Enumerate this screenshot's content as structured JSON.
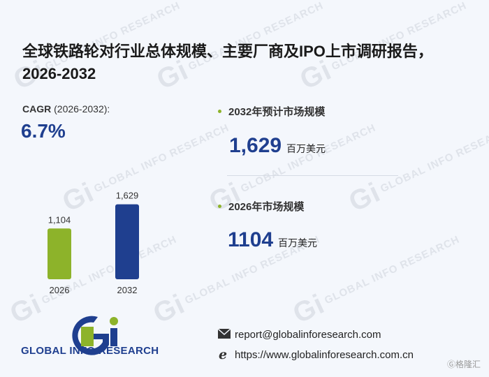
{
  "title": "全球铁路轮对行业总体规模、主要厂商及IPO上市调研报告，2026-2032",
  "cagr": {
    "label_bold": "CAGR",
    "label_range": "(2026-2032):",
    "value": "6.7%"
  },
  "stats": [
    {
      "title": "2032年预计市场规模",
      "value": "1,629",
      "unit": "百万美元"
    },
    {
      "title": "2026年市场规模",
      "value": "1104",
      "unit": "百万美元"
    }
  ],
  "chart_data": {
    "type": "bar",
    "categories": [
      "2026",
      "2032"
    ],
    "values": [
      1104,
      1629
    ],
    "data_labels": [
      "1,104",
      "1,629"
    ],
    "colors": [
      "#8db32a",
      "#1f3f8f"
    ],
    "title": "",
    "xlabel": "",
    "ylabel": "",
    "ylim": [
      0,
      1700
    ],
    "grid": false
  },
  "logo": {
    "mark": "Gi",
    "text": "GLOBAL INFO RESEARCH"
  },
  "contact": {
    "email": "report@globalinforesearch.com",
    "website": "https://www.globalinforesearch.com.cn"
  },
  "watermark": "GLOBAL INFO RESEARCH",
  "corner_mark": "Ⓖ格隆汇",
  "icons": {
    "email": "envelope-icon",
    "web": "browser-e-icon"
  }
}
